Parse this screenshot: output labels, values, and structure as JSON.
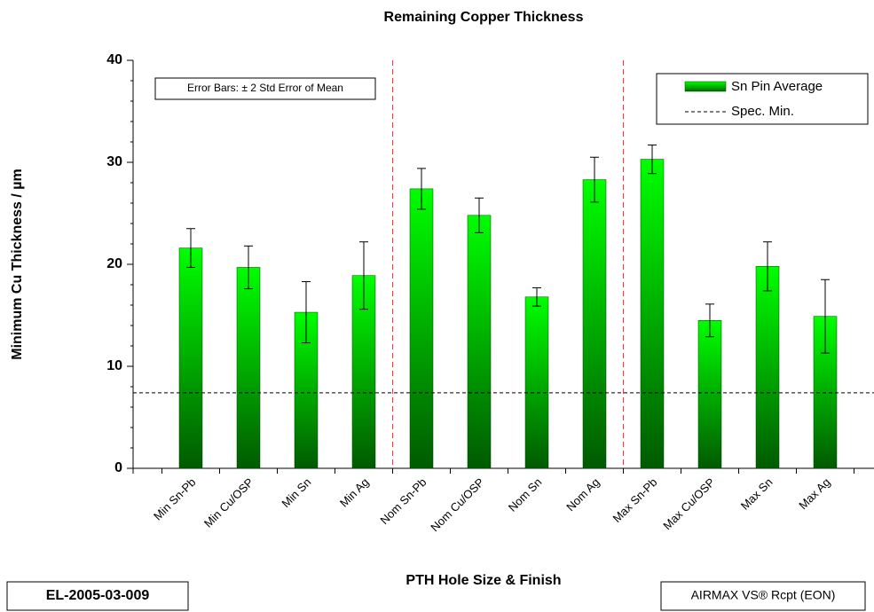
{
  "chart_data": {
    "type": "bar",
    "title": "Remaining Copper Thickness",
    "x_label": "PTH Hole Size & Finish",
    "y_label": "Minimum Cu Thickness / µm",
    "categories": [
      "Min Sn-Pb",
      "Min Cu/OSP",
      "Min Sn",
      "Min Ag",
      "Nom Sn-Pb",
      "Nom Cu/OSP",
      "Nom Sn",
      "Nom Ag",
      "Max Sn-Pb",
      "Max Cu/OSP",
      "Max Sn",
      "Max Ag"
    ],
    "series": [
      {
        "name": "Sn Pin Average",
        "color": "#00e000",
        "values": [
          21.6,
          19.7,
          15.3,
          18.9,
          27.4,
          24.8,
          16.8,
          28.3,
          30.3,
          14.5,
          19.8,
          14.9
        ],
        "errors": [
          1.9,
          2.1,
          3.0,
          3.3,
          2.0,
          1.7,
          0.9,
          2.2,
          1.4,
          1.6,
          2.4,
          3.6
        ]
      }
    ],
    "reference_line": {
      "name": "Spec. Min.",
      "value": 7.4,
      "color": "#000000"
    },
    "ylim": [
      0,
      40
    ],
    "yticks": [
      0,
      10,
      20,
      30,
      40
    ],
    "legend": "top-right",
    "annotations": [
      "Error Bars: ± 2 Std Error of Mean"
    ],
    "footer_left": "EL-2005-03-009",
    "footer_right": "AIRMAX VS® Rcpt (EON)"
  }
}
